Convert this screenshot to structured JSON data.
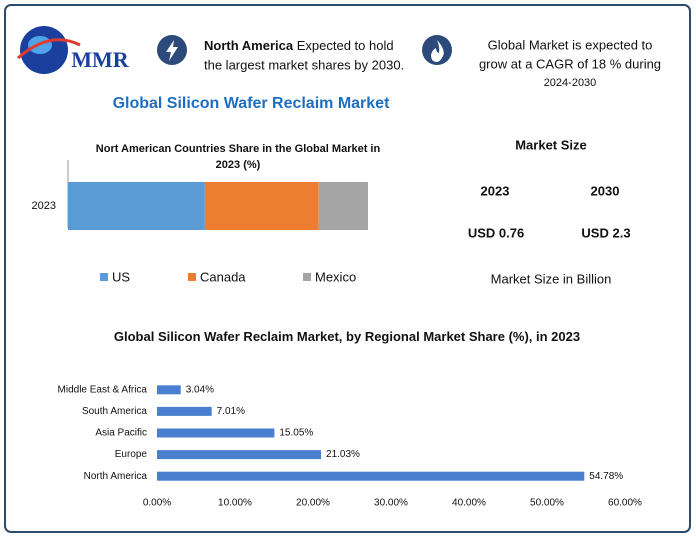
{
  "header": {
    "logo_text": "MMR",
    "note1": {
      "bold": "North America",
      "line1": "Expected to hold",
      "line2": "the largest market shares by 2030."
    },
    "note2": {
      "line1": "Global Market is expected to",
      "line2": "grow at a CAGR of 18 % during",
      "line3": "2024-2030"
    }
  },
  "title": "Global Silicon Wafer Reclaim Market",
  "chart_data": [
    {
      "type": "stacked-bar",
      "title": "Nort American Countries Share in the Global Market in 2023 (%)",
      "categories": [
        "2023"
      ],
      "series": [
        {
          "name": "US",
          "color": "#5b9bd5",
          "values": [
            25
          ]
        },
        {
          "name": "Canada",
          "color": "#ed7d31",
          "values": [
            20.8
          ]
        },
        {
          "name": "Mexico",
          "color": "#a5a5a5",
          "values": [
            9
          ]
        }
      ],
      "legend": "bottom"
    },
    {
      "type": "hbar",
      "title": "Global Silicon Wafer Reclaim Market, by Regional Market Share (%), in 2023",
      "categories": [
        "Middle East & Africa",
        "South America",
        "Asia Pacific",
        "Europe",
        "North America"
      ],
      "values": [
        3.04,
        7.01,
        15.05,
        21.03,
        54.78
      ],
      "value_labels": [
        "3.04%",
        "7.01%",
        "15.05%",
        "21.03%",
        "54.78%"
      ],
      "color": "#4a7fd0",
      "xlim": [
        0,
        60
      ],
      "xticks": [
        {
          "value": 0,
          "label": "0.00%"
        },
        {
          "value": 10,
          "label": "10.00%"
        },
        {
          "value": 20,
          "label": "20.00%"
        },
        {
          "value": 30,
          "label": "30.00%"
        },
        {
          "value": 40,
          "label": "40.00%"
        },
        {
          "value": 50,
          "label": "50.00%"
        },
        {
          "value": 60,
          "label": "60.00%"
        }
      ],
      "grid": false
    }
  ],
  "market_size": {
    "title": "Market Size",
    "years": [
      "2023",
      "2030"
    ],
    "values": [
      "USD 0.76",
      "USD 2.3"
    ],
    "note": "Market Size in Billion"
  }
}
